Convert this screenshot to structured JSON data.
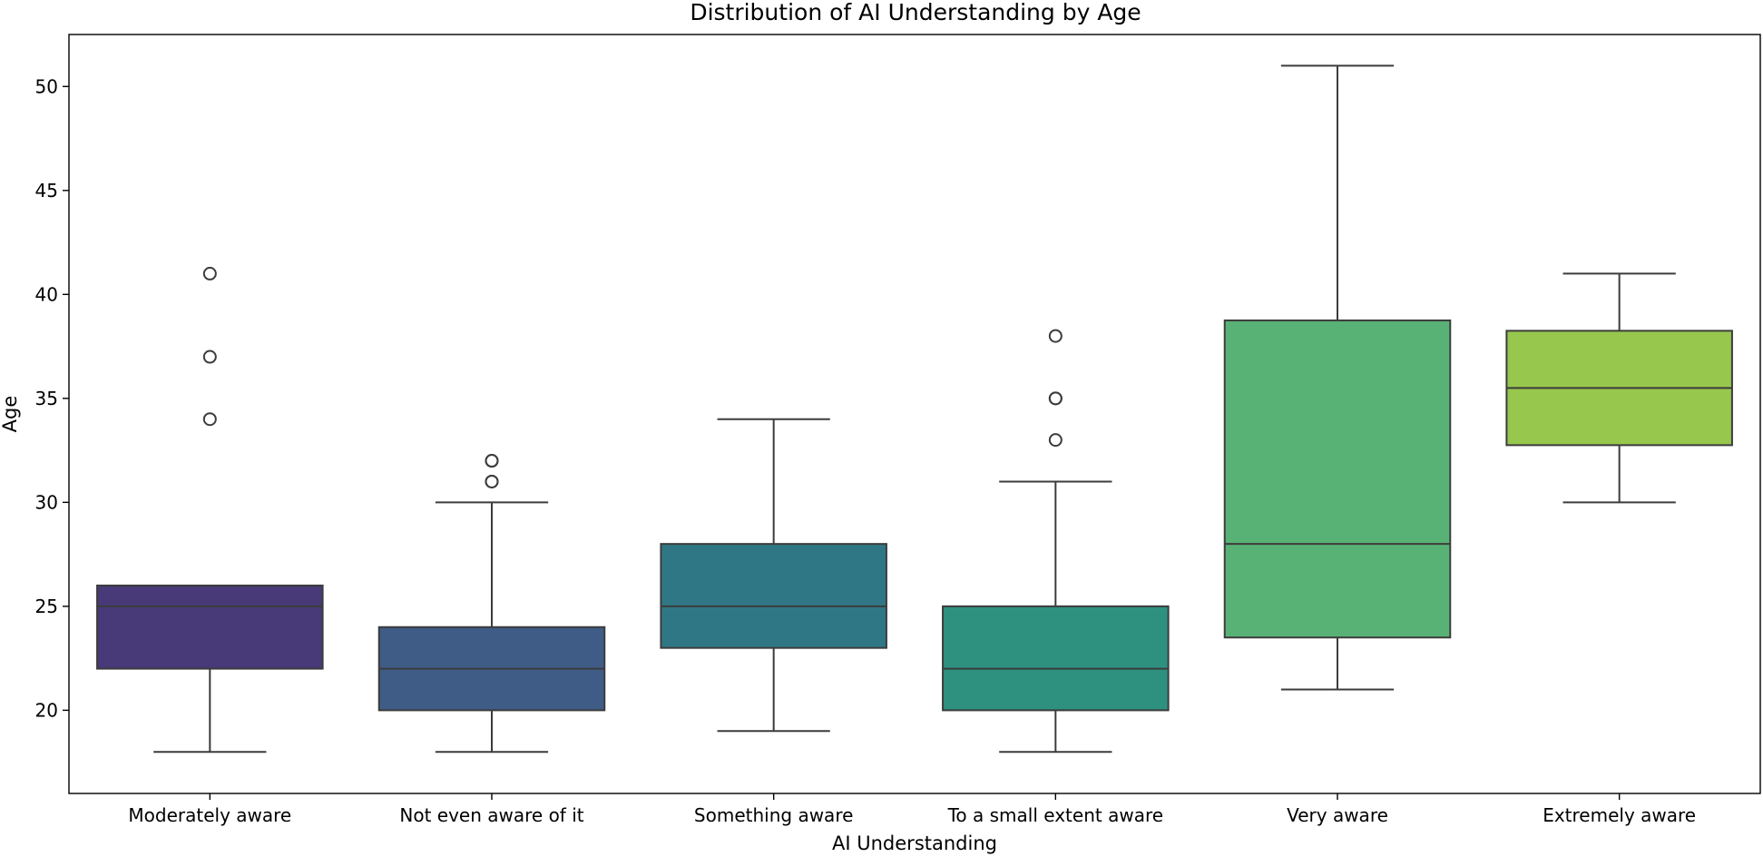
{
  "chart_data": {
    "type": "box",
    "title": "Distribution of AI Understanding by Age",
    "xlabel": "AI Understanding",
    "ylabel": "Age",
    "ylim": [
      16,
      52.5
    ],
    "yticks": [
      20,
      25,
      30,
      35,
      40,
      45,
      50
    ],
    "grid": false,
    "categories": [
      "Moderately aware",
      "Not even aware of it",
      "Something aware",
      "To a small extent aware",
      "Very aware",
      "Extremely aware"
    ],
    "boxes": [
      {
        "category": "Moderately aware",
        "whisker_low": 18,
        "q1": 22,
        "median": 25,
        "q3": 26,
        "whisker_high": 26,
        "outliers": [
          34,
          37,
          41
        ],
        "color": "#483A78"
      },
      {
        "category": "Not even aware of it",
        "whisker_low": 18,
        "q1": 20,
        "median": 22,
        "q3": 24,
        "whisker_high": 30,
        "outliers": [
          31,
          31,
          32,
          32
        ],
        "color": "#3F5C86"
      },
      {
        "category": "Something aware",
        "whisker_low": 19,
        "q1": 23,
        "median": 25,
        "q3": 28,
        "whisker_high": 34,
        "outliers": [],
        "color": "#307785"
      },
      {
        "category": "To a small extent aware",
        "whisker_low": 18,
        "q1": 20,
        "median": 22,
        "q3": 25,
        "whisker_high": 31,
        "outliers": [
          33,
          35,
          35,
          38
        ],
        "color": "#2E9180"
      },
      {
        "category": "Very aware",
        "whisker_low": 21,
        "q1": 23.5,
        "median": 28,
        "q3": 38.75,
        "whisker_high": 51,
        "outliers": [],
        "color": "#59B275"
      },
      {
        "category": "Extremely aware",
        "whisker_low": 30,
        "q1": 32.75,
        "median": 35.5,
        "q3": 38.25,
        "whisker_high": 41,
        "outliers": [],
        "color": "#97C74D"
      }
    ]
  }
}
